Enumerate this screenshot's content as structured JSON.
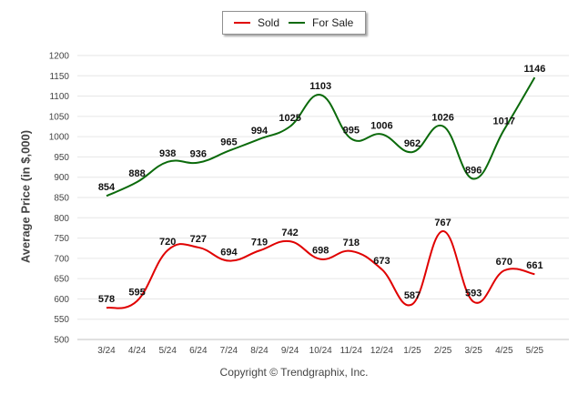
{
  "chart_data": {
    "type": "line",
    "ylabel": "Average Price (in $,000)",
    "ylim": [
      500,
      1200
    ],
    "yticks": [
      500,
      550,
      600,
      650,
      700,
      750,
      800,
      850,
      900,
      950,
      1000,
      1050,
      1100,
      1150,
      1200
    ],
    "categories": [
      "3/24",
      "4/24",
      "5/24",
      "6/24",
      "7/24",
      "8/24",
      "9/24",
      "10/24",
      "11/24",
      "12/24",
      "1/25",
      "2/25",
      "3/25",
      "4/25",
      "5/25"
    ],
    "series": [
      {
        "name": "Sold",
        "color": "#e00000",
        "values": [
          578,
          595,
          720,
          727,
          694,
          719,
          742,
          698,
          718,
          673,
          587,
          767,
          593,
          670,
          661
        ]
      },
      {
        "name": "For Sale",
        "color": "#0b6a0b",
        "values": [
          854,
          888,
          938,
          936,
          965,
          994,
          1025,
          1103,
          995,
          1006,
          962,
          1026,
          896,
          1017,
          1146
        ]
      }
    ],
    "grid": true,
    "legend_position": "top-center"
  },
  "legend": {
    "sold_label": "Sold",
    "for_sale_label": "For Sale"
  },
  "copyright": "Copyright © Trendgraphix, Inc."
}
